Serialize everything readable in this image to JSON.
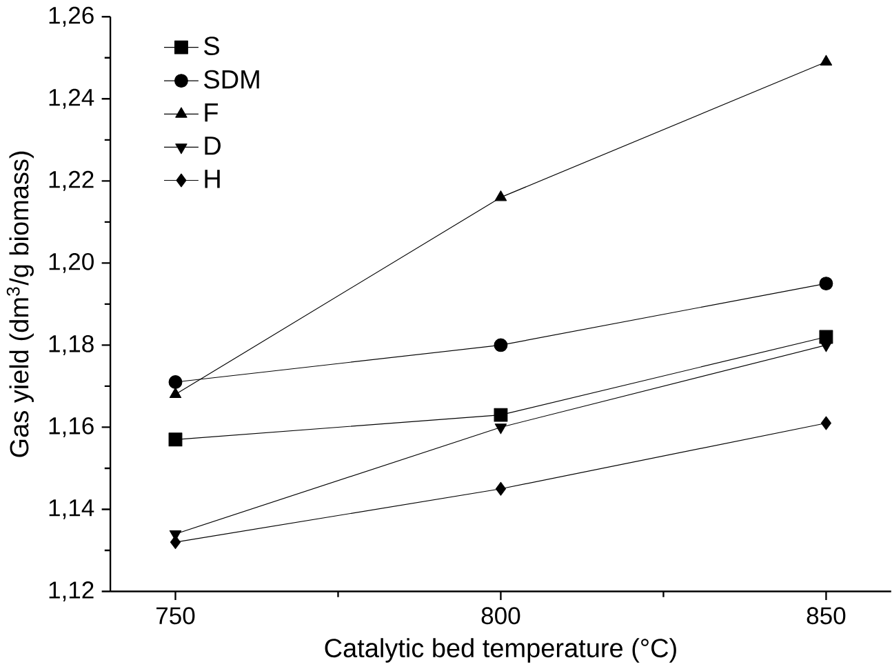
{
  "chart_data": {
    "type": "line",
    "xlabel": "Catalytic bed temperature (°C)",
    "ylabel": "Gas yield (dm$^{3}$/g biomass)",
    "x": [
      750,
      800,
      850
    ],
    "series": [
      {
        "name": "S",
        "color": "#000000",
        "marker": "square",
        "values": [
          1.157,
          1.163,
          1.182
        ]
      },
      {
        "name": "SDM",
        "color": "#000000",
        "marker": "circle",
        "values": [
          1.171,
          1.18,
          1.195
        ]
      },
      {
        "name": "F",
        "color": "#000000",
        "marker": "triangle",
        "values": [
          1.168,
          1.216,
          1.249
        ]
      },
      {
        "name": "D",
        "color": "#000000",
        "marker": "triangle down",
        "values": [
          1.134,
          1.16,
          1.18
        ]
      },
      {
        "name": "H",
        "color": "#000000",
        "marker": "diamond",
        "values": [
          1.132,
          1.145,
          1.161
        ]
      }
    ],
    "xlim": [
      740,
      860
    ],
    "xticks": [
      750,
      800,
      850
    ],
    "ylim": [
      1.12,
      1.26
    ],
    "yticks": [
      {
        "value": 1.12,
        "label": "1,12"
      },
      {
        "value": 1.14,
        "label": "1,14"
      },
      {
        "value": 1.16,
        "label": "1,16"
      },
      {
        "value": 1.18,
        "label": "1,18"
      },
      {
        "value": 1.2,
        "label": "1,20"
      },
      {
        "value": 1.22,
        "label": "1,22"
      },
      {
        "value": 1.24,
        "label": "1,24"
      },
      {
        "value": 1.26,
        "label": "1,26"
      }
    ],
    "legend": "top left",
    "grid": false,
    "line_style": "solid"
  }
}
